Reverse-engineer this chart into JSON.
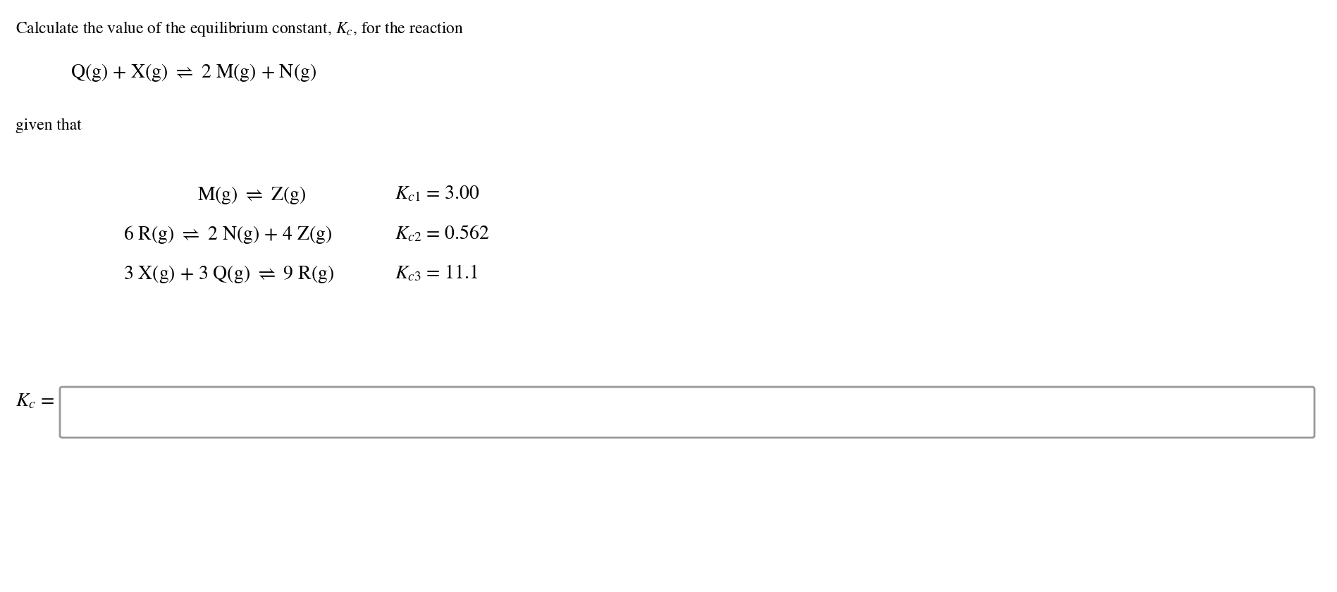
{
  "bg_color": "#ffffff",
  "title_line": "Calculate the value of the equilibrium constant, $K_c$, for the reaction",
  "main_reaction": "Q(g) + X(g) $\\rightleftharpoons$ 2 M(g) + N(g)",
  "given_that": "given that",
  "reaction1": "M(g) $\\rightleftharpoons$ Z(g)",
  "reaction2": "6 R(g) $\\rightleftharpoons$ 2 N(g) + 4 Z(g)",
  "reaction3": "3 X(g) + 3 Q(g) $\\rightleftharpoons$ 9 R(g)",
  "const1": "$K_{c1}$ = 3.00",
  "const2": "$K_{c2}$ = 0.562",
  "const3": "$K_{c3}$ = 11.1",
  "answer_label": "$K_c$ =",
  "font_size_title": 17,
  "font_size_main": 20,
  "font_size_given": 17,
  "font_size_reactions": 20,
  "font_size_answer": 20,
  "box_edge_color": "#999999"
}
